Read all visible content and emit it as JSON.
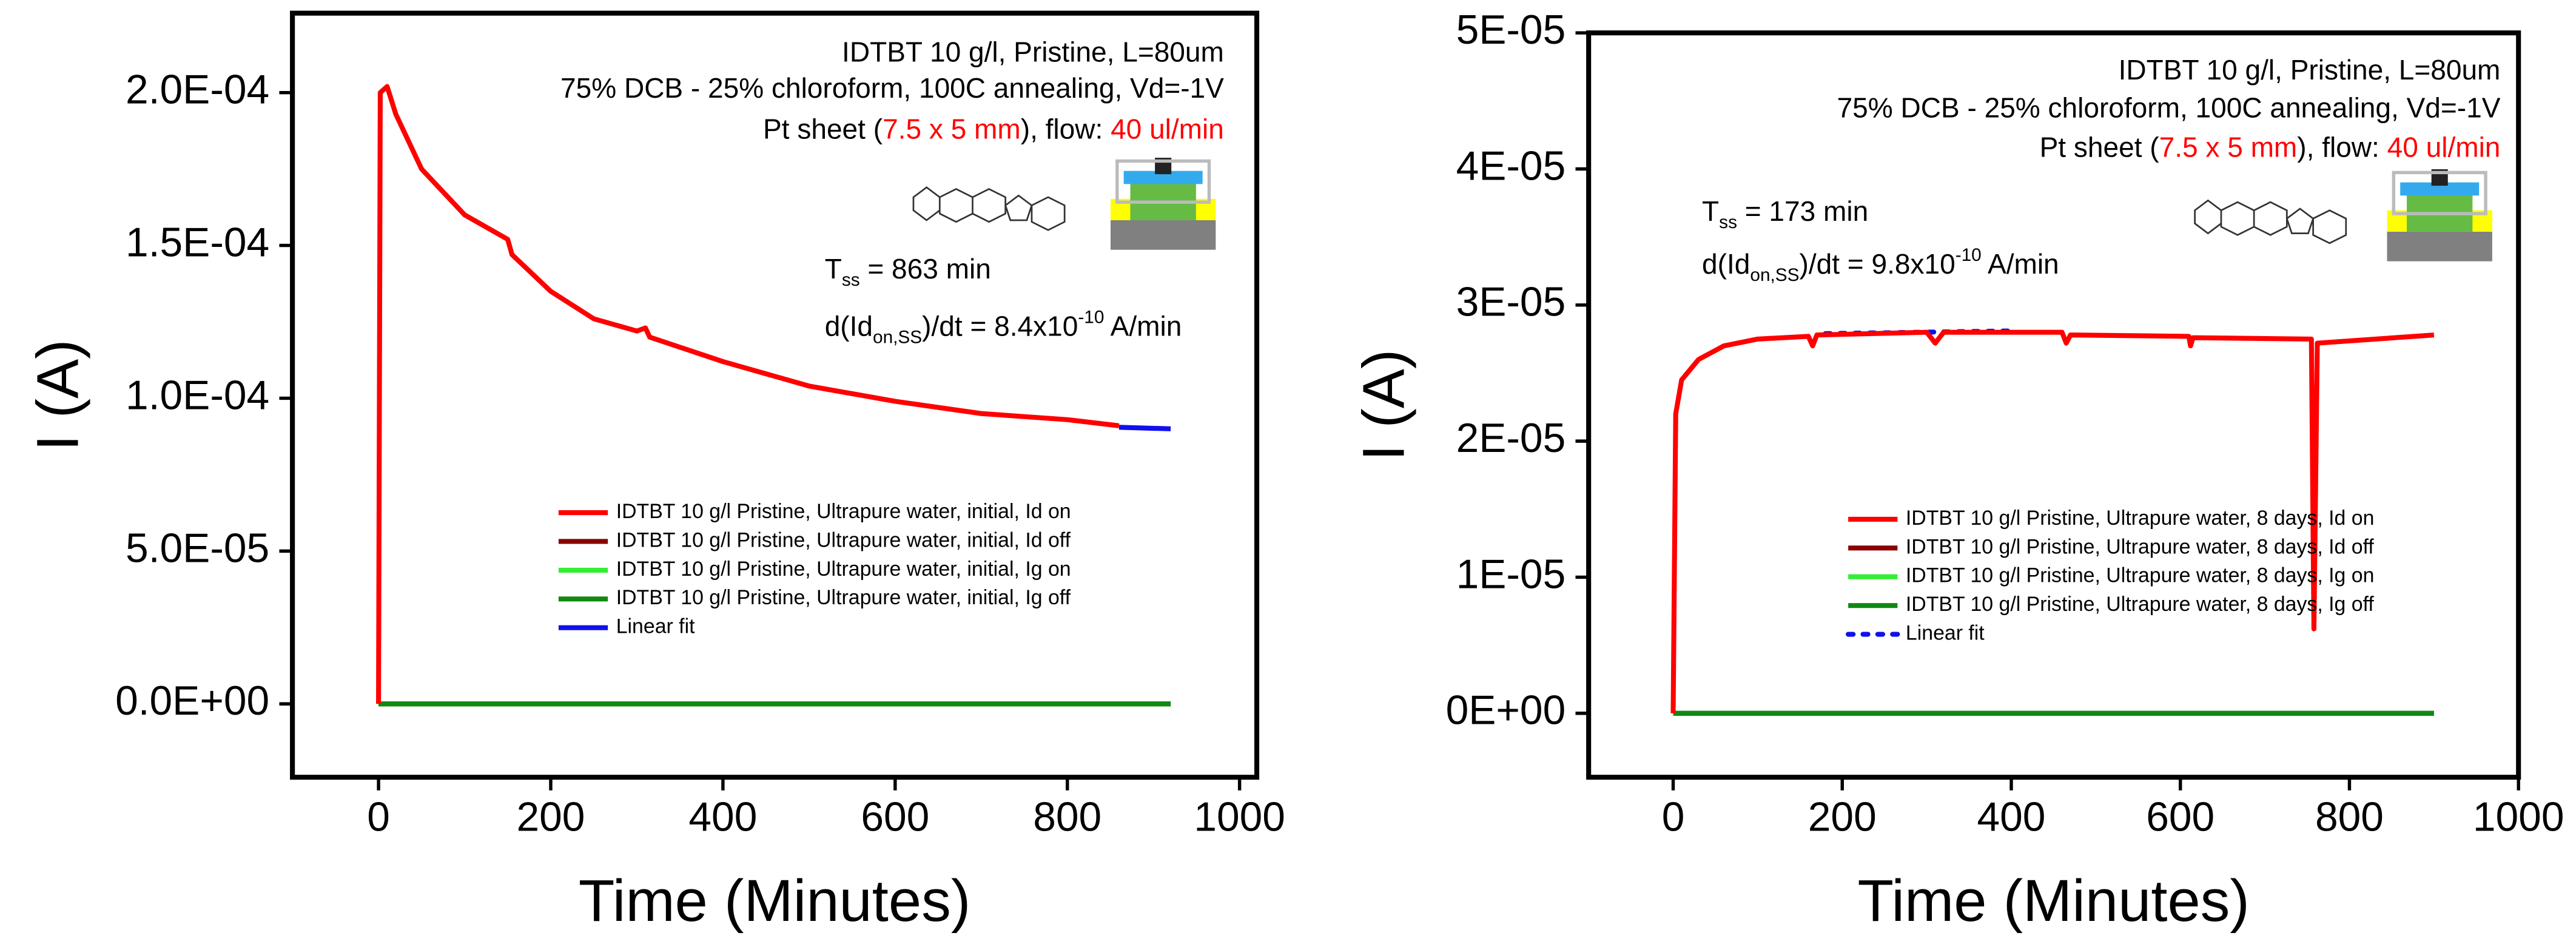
{
  "chart_data": [
    {
      "type": "line",
      "xlabel": "Time (Minutes)",
      "ylabel": "I (A)",
      "xlim": [
        -100,
        1020
      ],
      "xticks": [
        0,
        200,
        400,
        600,
        800,
        1000
      ],
      "ylim": [
        -2.4e-05,
        0.000226
      ],
      "yticks": [
        {
          "value": 0,
          "label": "0.0E+00"
        },
        {
          "value": 5e-05,
          "label": "5.0E-05"
        },
        {
          "value": 0.0001,
          "label": "1.0E-04"
        },
        {
          "value": 0.00015,
          "label": "1.5E-04"
        },
        {
          "value": 0.0002,
          "label": "2.0E-04"
        }
      ],
      "notes": [
        [
          {
            "text": "IDTBT 10 g/l, Pristine, L=80um"
          }
        ],
        [
          {
            "text": "75% DCB - 25% chloroform, 100C annealing, Vd=-1V"
          }
        ],
        [
          {
            "text": "Pt sheet ("
          },
          {
            "text": "7.5 x 5 mm",
            "color": "#ff0000"
          },
          {
            "text": "), flow: "
          },
          {
            "text": "40 ul/min",
            "color": "#ff0000"
          }
        ],
        [
          {
            "text": "T"
          },
          {
            "text": "ss",
            "shift": "sub"
          },
          {
            "text": " = 863 min"
          }
        ],
        [
          {
            "text": "d(Id"
          },
          {
            "text": "on,SS",
            "shift": "sub"
          },
          {
            "text": ")/dt = 8.4x10"
          },
          {
            "text": "-10",
            "shift": "super"
          },
          {
            "text": " A/min"
          }
        ]
      ],
      "series": [
        {
          "name": "IDTBT 10 g/l Pristine, Ultrapure water, initial, Id on",
          "color": "#ff0000",
          "x": [
            0,
            2,
            10,
            20,
            50,
            100,
            150,
            155,
            200,
            250,
            300,
            310,
            315,
            400,
            500,
            600,
            700,
            800,
            860
          ],
          "values": [
            0,
            0.0002,
            0.000202,
            0.000193,
            0.000175,
            0.00016,
            0.000152,
            0.000147,
            0.000135,
            0.000126,
            0.000122,
            0.000123,
            0.00012,
            0.000112,
            0.000104,
            9.9e-05,
            9.5e-05,
            9.3e-05,
            9.1e-05
          ]
        },
        {
          "name": "IDTBT 10 g/l Pristine, Ultrapure water, initial, Id off",
          "color": "#8b0000",
          "x": [
            0,
            920
          ],
          "values": [
            0,
            0
          ]
        },
        {
          "name": "IDTBT 10 g/l Pristine, Ultrapure water, initial, Ig on",
          "color": "#33ee33",
          "x": [
            0,
            920
          ],
          "values": [
            0,
            0
          ]
        },
        {
          "name": "IDTBT 10 g/l Pristine, Ultrapure water, initial, Ig off",
          "color": "#118811",
          "x": [
            0,
            920
          ],
          "values": [
            0,
            0
          ]
        },
        {
          "name": "Linear fit",
          "color": "#1010ee",
          "x": [
            860,
            920
          ],
          "values": [
            9.05e-05,
            9e-05
          ]
        }
      ]
    },
    {
      "type": "line",
      "xlabel": "Time (Minutes)",
      "ylabel": "I (A)",
      "xlim": [
        -100,
        1000
      ],
      "xticks": [
        0,
        200,
        400,
        600,
        800,
        1000
      ],
      "ylim": [
        -4.7e-06,
        5e-05
      ],
      "yticks": [
        {
          "value": 0,
          "label": "0E+00"
        },
        {
          "value": 1e-05,
          "label": "1E-05"
        },
        {
          "value": 2e-05,
          "label": "2E-05"
        },
        {
          "value": 3e-05,
          "label": "3E-05"
        },
        {
          "value": 4e-05,
          "label": "4E-05"
        },
        {
          "value": 5e-05,
          "label": "5E-05"
        }
      ],
      "notes": [
        [
          {
            "text": "IDTBT 10 g/l, Pristine, L=80um"
          }
        ],
        [
          {
            "text": "75% DCB - 25% chloroform, 100C annealing, Vd=-1V"
          }
        ],
        [
          {
            "text": "Pt sheet ("
          },
          {
            "text": "7.5 x 5 mm",
            "color": "#ff0000"
          },
          {
            "text": "), flow: "
          },
          {
            "text": "40 ul/min",
            "color": "#ff0000"
          }
        ],
        [
          {
            "text": "T"
          },
          {
            "text": "ss",
            "shift": "sub"
          },
          {
            "text": " = 173 min"
          }
        ],
        [
          {
            "text": "d(Id"
          },
          {
            "text": "on,SS",
            "shift": "sub"
          },
          {
            "text": ")/dt = 9.8x10"
          },
          {
            "text": "-10",
            "shift": "super"
          },
          {
            "text": " A/min"
          }
        ]
      ],
      "series": [
        {
          "name": "IDTBT 10 g/l Pristine, Ultrapure water, 8 days, Id on",
          "color": "#ff0000",
          "x": [
            0,
            3,
            10,
            30,
            60,
            100,
            160,
            165,
            170,
            300,
            310,
            320,
            460,
            465,
            470,
            610,
            612,
            615,
            755,
            758,
            762,
            900
          ],
          "values": [
            0,
            2.2e-05,
            2.45e-05,
            2.6e-05,
            2.7e-05,
            2.75e-05,
            2.77e-05,
            2.7e-05,
            2.78e-05,
            2.8e-05,
            2.72e-05,
            2.8e-05,
            2.8e-05,
            2.72e-05,
            2.78e-05,
            2.77e-05,
            2.7e-05,
            2.76e-05,
            2.75e-05,
            6.2e-06,
            2.72e-05,
            2.78e-05
          ]
        },
        {
          "name": "IDTBT 10 g/l Pristine, Ultrapure water, 8 days, Id off",
          "color": "#8b0000",
          "x": [
            0,
            900
          ],
          "values": [
            0,
            0
          ]
        },
        {
          "name": "IDTBT 10 g/l Pristine, Ultrapure water, 8 days, Ig on",
          "color": "#33ee33",
          "x": [
            0,
            900
          ],
          "values": [
            0,
            0
          ]
        },
        {
          "name": "IDTBT 10 g/l Pristine, Ultrapure water, 8 days, Ig off",
          "color": "#118811",
          "x": [
            0,
            900
          ],
          "values": [
            0,
            0
          ]
        },
        {
          "name": "Linear fit",
          "color": "#1010ee",
          "style": "dotted",
          "x": [
            180,
            400
          ],
          "values": [
            2.79e-05,
            2.81e-05
          ]
        }
      ]
    }
  ]
}
